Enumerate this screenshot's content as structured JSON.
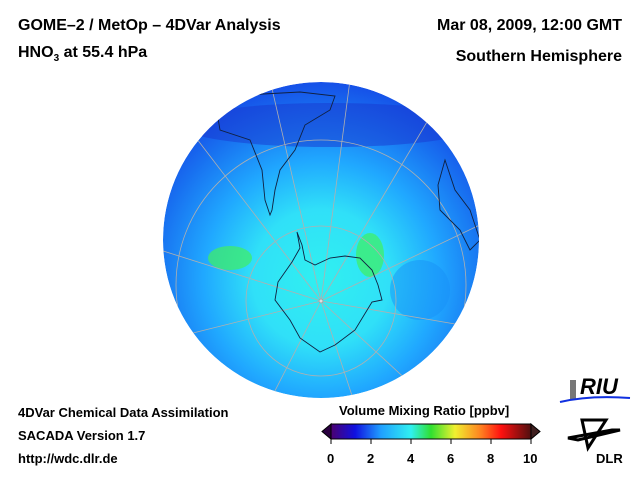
{
  "header": {
    "title_line1": "GOME–2 / MetOp – 4DVar Analysis",
    "species_main": "HNO",
    "species_sub": "3",
    "species_rest": " at 55.4 hPa",
    "datetime": "Mar 08, 2009, 12:00 GMT",
    "region": "Southern Hemisphere"
  },
  "footer": {
    "line1": "4DVar Chemical Data Assimilation",
    "line2": "SACADA Version 1.7",
    "url": "http://wdc.dlr.de"
  },
  "colorbar": {
    "title": "Volume Mixing Ratio [ppbv]",
    "min": 0,
    "max": 10,
    "ticks": [
      "0",
      "2",
      "4",
      "6",
      "8",
      "10"
    ],
    "colors": [
      "#4b0070",
      "#1010e0",
      "#20a0ff",
      "#30f0f0",
      "#30e030",
      "#f0f030",
      "#ff8020",
      "#ff1010",
      "#501010"
    ]
  },
  "logos": {
    "riu": "RIU",
    "dlr": "DLR"
  }
}
